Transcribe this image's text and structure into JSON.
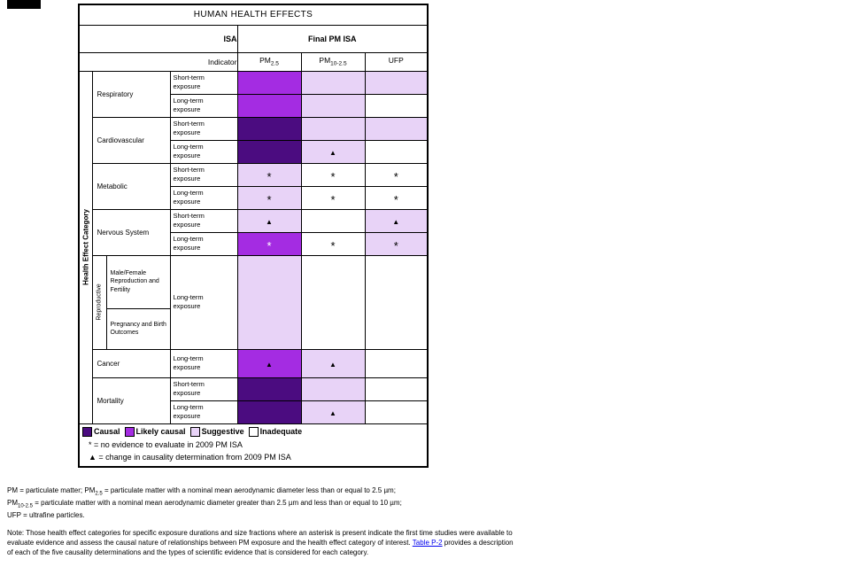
{
  "table": {
    "title": "HUMAN HEALTH EFFECTS",
    "header": {
      "isa_label": "ISA",
      "final_label": "Final PM ISA",
      "indicator_label": "Indicator",
      "columns": [
        {
          "base": "PM",
          "sub": "2.5"
        },
        {
          "base": "PM",
          "sub": "10-2.5"
        },
        {
          "base": "UFP",
          "sub": ""
        }
      ]
    },
    "left_axis_label": "Health Effect Category",
    "groups": [
      {
        "name": "Respiratory",
        "rows": [
          {
            "exposure": "Short-term exposure",
            "cells": [
              {
                "level": "likely"
              },
              {
                "level": "suggestive"
              },
              {
                "level": "suggestive"
              }
            ]
          },
          {
            "exposure": "Long-term exposure",
            "cells": [
              {
                "level": "likely"
              },
              {
                "level": "suggestive"
              },
              {
                "level": "inadequate"
              }
            ]
          }
        ]
      },
      {
        "name": "Cardiovascular",
        "rows": [
          {
            "exposure": "Short-term exposure",
            "cells": [
              {
                "level": "causal"
              },
              {
                "level": "suggestive"
              },
              {
                "level": "suggestive"
              }
            ]
          },
          {
            "exposure": "Long-term exposure",
            "cells": [
              {
                "level": "causal"
              },
              {
                "level": "suggestive",
                "symbol": "▲"
              },
              {
                "level": "inadequate"
              }
            ]
          }
        ]
      },
      {
        "name": "Metabolic",
        "rows": [
          {
            "exposure": "Short-term exposure",
            "cells": [
              {
                "level": "suggestive",
                "symbol": "*"
              },
              {
                "level": "inadequate",
                "symbol": "*"
              },
              {
                "level": "inadequate",
                "symbol": "*"
              }
            ]
          },
          {
            "exposure": "Long-term exposure",
            "cells": [
              {
                "level": "suggestive",
                "symbol": "*"
              },
              {
                "level": "inadequate",
                "symbol": "*"
              },
              {
                "level": "inadequate",
                "symbol": "*"
              }
            ]
          }
        ]
      },
      {
        "name": "Nervous System",
        "rows": [
          {
            "exposure": "Short-term exposure",
            "cells": [
              {
                "level": "suggestive",
                "symbol": "▲"
              },
              {
                "level": "inadequate"
              },
              {
                "level": "suggestive",
                "symbol": "▲"
              }
            ]
          },
          {
            "exposure": "Long-term exposure",
            "cells": [
              {
                "level": "likely",
                "symbol": "*"
              },
              {
                "level": "inadequate",
                "symbol": "*"
              },
              {
                "level": "suggestive",
                "symbol": "*"
              }
            ]
          }
        ]
      },
      {
        "name": "Reproductive",
        "sub_rows": [
          "Male/Female Reproduction and Fertility",
          "Pregnancy and Birth Outcomes"
        ],
        "exposure": "Long-term exposure",
        "cells": [
          {
            "level": "suggestive"
          },
          {
            "level": "inadequate"
          },
          {
            "level": "inadequate"
          }
        ]
      },
      {
        "name": "Cancer",
        "rows": [
          {
            "exposure": "Long-term exposure",
            "cells": [
              {
                "level": "likely",
                "symbol": "▲"
              },
              {
                "level": "suggestive",
                "symbol": "▲"
              },
              {
                "level": "inadequate"
              }
            ]
          }
        ]
      },
      {
        "name": "Mortality",
        "rows": [
          {
            "exposure": "Short-term exposure",
            "cells": [
              {
                "level": "causal"
              },
              {
                "level": "suggestive"
              },
              {
                "level": "inadequate"
              }
            ]
          },
          {
            "exposure": "Long-term exposure",
            "cells": [
              {
                "level": "causal"
              },
              {
                "level": "suggestive",
                "symbol": "▲"
              },
              {
                "level": "inadequate"
              }
            ]
          }
        ]
      }
    ],
    "legend": [
      {
        "label": "Causal",
        "level": "causal"
      },
      {
        "label": "Likely causal",
        "level": "likely"
      },
      {
        "label": "Suggestive",
        "level": "suggestive"
      },
      {
        "label": "Inadequate",
        "level": "inadequate"
      }
    ],
    "legend_notes": [
      "* = no evidence to evaluate  in 2009 PM ISA",
      "▲ = change in causality determination  from 2009 PM ISA"
    ]
  },
  "colors": {
    "causal": "#4b0c80",
    "likely": "#a42ce2",
    "suggestive": "#e8d3f7",
    "inadequate": "#ffffff",
    "link": "#0000ee"
  },
  "footnotes": {
    "abbreviations": [
      [
        {
          "t": "PM = particulate matter; PM"
        },
        {
          "t": "2.5",
          "sub": true
        },
        {
          "t": " = particulate matter with a nominal mean aerodynamic diameter less than or equal to 2.5 µm;"
        }
      ],
      [
        {
          "t": "PM"
        },
        {
          "t": "10-2.5",
          "sub": true
        },
        {
          "t": " = particulate matter with a nominal mean aerodynamic diameter greater than 2.5 µm and less than or equal to 10 µm;"
        }
      ],
      [
        {
          "t": "UFP = ultrafine particles."
        }
      ]
    ],
    "note": [
      {
        "t": "Note: Those health effect categories for specific exposure durations and size fractions where an asterisk is present indicate the first time studies were available to evaluate evidence and assess the causal nature of relationships between PM exposure and the health effect category of interest. "
      },
      {
        "t": "Table P-2",
        "link": true
      },
      {
        "t": " provides a description of each of the five causality determinations and the types of scientific evidence that is considered for each category."
      }
    ]
  }
}
